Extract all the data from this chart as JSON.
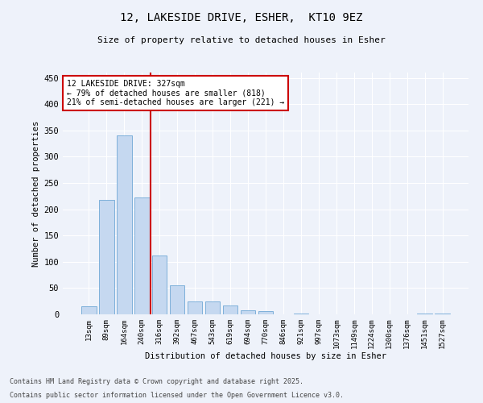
{
  "title_line1": "12, LAKESIDE DRIVE, ESHER,  KT10 9EZ",
  "title_line2": "Size of property relative to detached houses in Esher",
  "xlabel": "Distribution of detached houses by size in Esher",
  "ylabel": "Number of detached properties",
  "bar_labels": [
    "13sqm",
    "89sqm",
    "164sqm",
    "240sqm",
    "316sqm",
    "392sqm",
    "467sqm",
    "543sqm",
    "619sqm",
    "694sqm",
    "770sqm",
    "846sqm",
    "921sqm",
    "997sqm",
    "1073sqm",
    "1149sqm",
    "1224sqm",
    "1300sqm",
    "1376sqm",
    "1451sqm",
    "1527sqm"
  ],
  "bar_values": [
    15,
    218,
    340,
    223,
    112,
    55,
    25,
    25,
    17,
    8,
    6,
    0,
    2,
    0,
    0,
    0,
    0,
    0,
    0,
    2,
    2
  ],
  "bar_color": "#c5d8f0",
  "bar_edge_color": "#6fa8d6",
  "vline_index": 4,
  "annotation_text": "12 LAKESIDE DRIVE: 327sqm\n← 79% of detached houses are smaller (818)\n21% of semi-detached houses are larger (221) →",
  "annotation_box_color": "#ffffff",
  "annotation_box_edge_color": "#cc0000",
  "vline_color": "#cc0000",
  "ylim": [
    0,
    460
  ],
  "yticks": [
    0,
    50,
    100,
    150,
    200,
    250,
    300,
    350,
    400,
    450
  ],
  "background_color": "#eef2fa",
  "grid_color": "#ffffff",
  "footer_line1": "Contains HM Land Registry data © Crown copyright and database right 2025.",
  "footer_line2": "Contains public sector information licensed under the Open Government Licence v3.0."
}
